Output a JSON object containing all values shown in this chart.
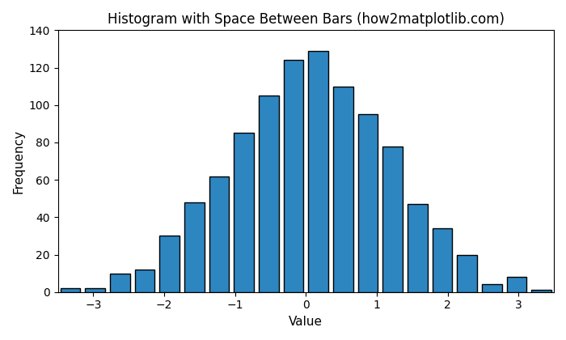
{
  "title": "Histogram with Space Between Bars (how2matplotlib.com)",
  "xlabel": "Value",
  "ylabel": "Frequency",
  "bar_color": "#2E86C1",
  "bar_edgecolor": "black",
  "rwidth": 0.8,
  "xlim": [
    -3.5,
    3.5
  ],
  "ylim": [
    0,
    140
  ],
  "title_fontsize": 12,
  "label_fontsize": 11,
  "bar_heights": [
    2,
    2,
    10,
    12,
    30,
    48,
    62,
    85,
    105,
    124,
    129,
    110,
    95,
    78,
    47,
    34,
    20,
    4,
    8,
    1
  ],
  "bin_edges": [
    -3.5,
    -3.15,
    -2.8,
    -2.45,
    -2.1,
    -1.75,
    -1.4,
    -1.05,
    -0.7,
    -0.35,
    0.0,
    0.35,
    0.7,
    1.05,
    1.4,
    1.75,
    2.1,
    2.45,
    2.8,
    3.15,
    3.5
  ]
}
